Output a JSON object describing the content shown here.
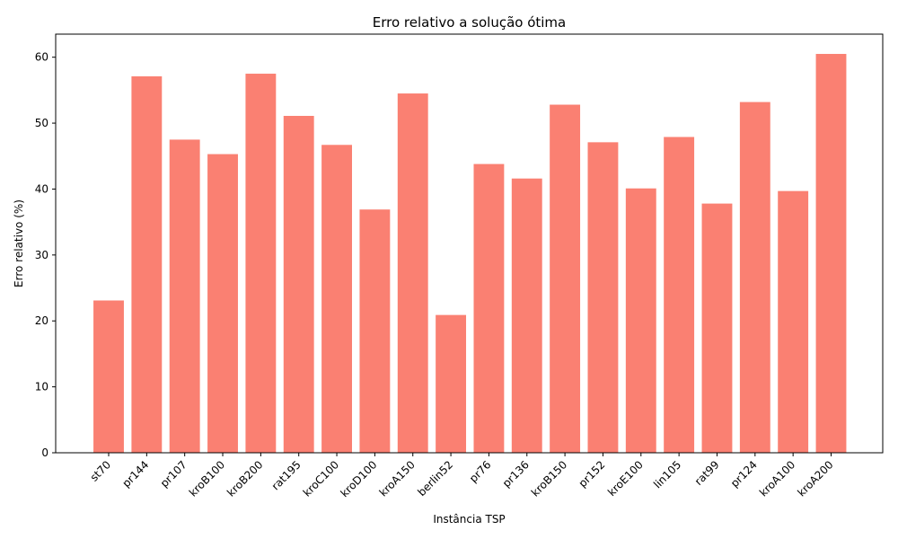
{
  "chart_data": {
    "type": "bar",
    "title": "Erro relativo a solução ótima",
    "xlabel": "Instância TSP",
    "ylabel": "Erro relativo (%)",
    "categories": [
      "st70",
      "pr144",
      "pr107",
      "kroB100",
      "kroB200",
      "rat195",
      "kroC100",
      "kroD100",
      "kroA150",
      "berlin52",
      "pr76",
      "pr136",
      "kroB150",
      "pr152",
      "kroE100",
      "lin105",
      "rat99",
      "pr124",
      "kroA100",
      "kroA200"
    ],
    "values": [
      23.1,
      57.1,
      47.5,
      45.3,
      57.5,
      51.1,
      46.7,
      36.9,
      54.5,
      20.9,
      43.8,
      41.6,
      52.8,
      47.1,
      40.1,
      47.9,
      37.8,
      53.2,
      39.7,
      60.5
    ],
    "ylim": [
      0,
      63.5
    ],
    "yticks": [
      0,
      10,
      20,
      30,
      40,
      50,
      60
    ],
    "grid": false,
    "bar_color": "#fa8072"
  }
}
